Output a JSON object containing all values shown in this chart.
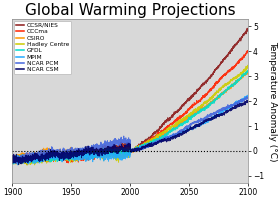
{
  "title": "Global Warming Projections",
  "title_fontsize": 11,
  "ylabel": "Temperature Anomaly (°C)",
  "ylabel_fontsize": 6.5,
  "xlim": [
    1900,
    2100
  ],
  "ylim": [
    -1.3,
    5.3
  ],
  "yticks": [
    -1,
    0,
    1,
    2,
    3,
    4,
    5
  ],
  "xticks": [
    1900,
    1950,
    2000,
    2050,
    2100
  ],
  "bg_color": "#d8d8d8",
  "models": [
    {
      "name": "CCSR/NIES",
      "color": "#8b1a1a"
    },
    {
      "name": "CCCma",
      "color": "#ff2200"
    },
    {
      "name": "CSIRO",
      "color": "#ff9900"
    },
    {
      "name": "Hadley Centre",
      "color": "#cccc00"
    },
    {
      "name": "GFDL",
      "color": "#00ddcc"
    },
    {
      "name": "MPIM",
      "color": "#22aaff"
    },
    {
      "name": "NCAR PCM",
      "color": "#4466dd"
    },
    {
      "name": "NCAR CSM",
      "color": "#000066"
    }
  ],
  "hist_start": 1900,
  "hist_end": 2000,
  "proj_end": 2100,
  "end_values": [
    4.85,
    4.0,
    3.45,
    3.2,
    3.25,
    2.2,
    2.15,
    2.05
  ],
  "noise_scale": 0.07
}
